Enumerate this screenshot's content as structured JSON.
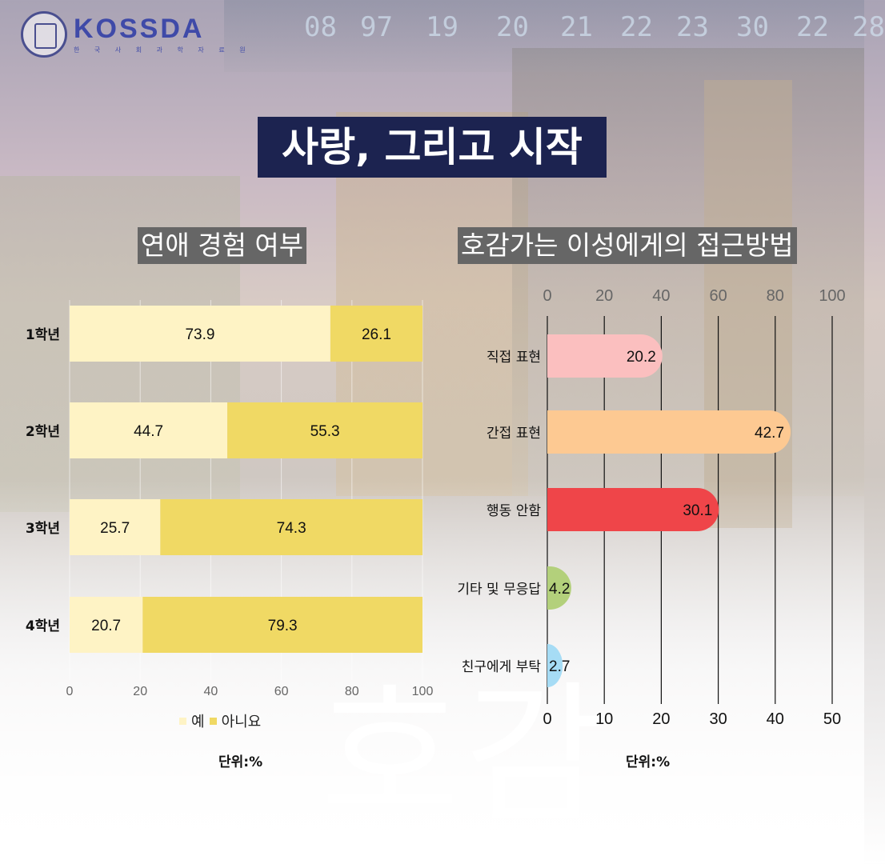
{
  "logo": {
    "name": "KOSSDA",
    "subtitle": "한 국 사 회 과 학 자 료 원"
  },
  "background": {
    "numbers": [
      "08",
      "97",
      "19",
      "20",
      "21",
      "22",
      "23",
      "30",
      "22",
      "28"
    ],
    "watermark": "호감"
  },
  "title": "사랑, 그리고 시작",
  "chart_left_title": "연애 경험 여부",
  "chart_right_title": "호감가는 이성에게의 접근방법",
  "chart_data": [
    {
      "type": "bar",
      "orientation": "horizontal",
      "stacked": true,
      "categories": [
        "1학년",
        "2학년",
        "3학년",
        "4학년"
      ],
      "series": [
        {
          "name": "예",
          "values": [
            73.9,
            44.7,
            25.7,
            20.7
          ],
          "color": "#fef3c5"
        },
        {
          "name": "아니요",
          "values": [
            26.1,
            55.3,
            74.3,
            79.3
          ],
          "color": "#f0d964"
        }
      ],
      "xlim": [
        0,
        100
      ],
      "xticks": [
        0,
        20,
        40,
        60,
        80,
        100
      ],
      "legend": "bottom",
      "unit": "단위:%"
    },
    {
      "type": "bar",
      "orientation": "horizontal",
      "categories": [
        "직접 표현",
        "간접 표현",
        "행동 안함",
        "기타 및 무응답",
        "친구에게 부탁"
      ],
      "values": [
        20.2,
        42.7,
        30.1,
        4.2,
        2.7
      ],
      "colors": [
        "#fbbfbf",
        "#fdc992",
        "#ef4549",
        "#b3d07b",
        "#a6dcf5"
      ],
      "xlim": [
        0,
        50
      ],
      "xticks_bottom": [
        0,
        10,
        20,
        30,
        40,
        50
      ],
      "xticks_top": [
        0,
        20,
        40,
        60,
        80,
        100
      ],
      "grid": true,
      "unit": "단위:%"
    }
  ]
}
